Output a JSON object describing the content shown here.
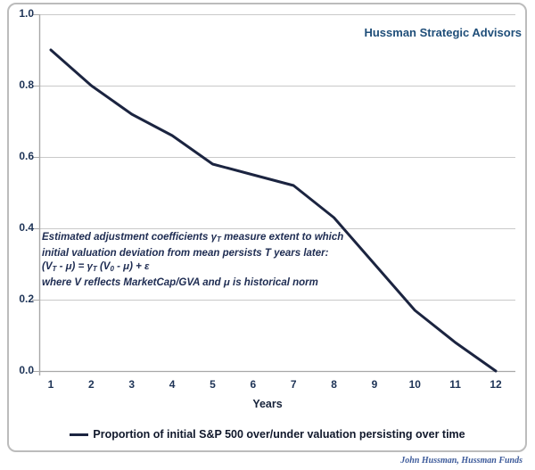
{
  "header": {
    "brand": "Hussman Strategic Advisors"
  },
  "chart_data": {
    "type": "line",
    "x": [
      1,
      2,
      3,
      4,
      5,
      6,
      7,
      8,
      9,
      10,
      11,
      12
    ],
    "series": [
      {
        "name": "Proportion of initial S&P 500 over/under valuation persisting over time",
        "values": [
          0.9,
          0.8,
          0.72,
          0.66,
          0.58,
          0.55,
          0.52,
          0.43,
          0.3,
          0.17,
          0.08,
          0.0
        ]
      }
    ],
    "title": "",
    "xlabel": "Years",
    "ylabel": "",
    "ylim": [
      0.0,
      1.0
    ],
    "yticks": [
      0.0,
      0.2,
      0.4,
      0.6,
      0.8,
      1.0
    ],
    "ytick_labels": [
      "0.0",
      "0.2",
      "0.4",
      "0.6",
      "0.8",
      "1.0"
    ],
    "grid": "horizontal-major",
    "legend_position": "bottom"
  },
  "annotation": {
    "lines": [
      {
        "segs": [
          {
            "t": "Estimated adjustment coefficients γ"
          },
          {
            "t": "T",
            "sub": true
          },
          {
            "t": " measure extent to which"
          }
        ]
      },
      {
        "segs": [
          {
            "t": "initial valuation deviation from mean persists T years later:"
          }
        ]
      },
      {
        "segs": [
          {
            "t": "(V"
          },
          {
            "t": "T",
            "sub": true
          },
          {
            "t": " - μ) = γ"
          },
          {
            "t": "T",
            "sub": true
          },
          {
            "t": " (V"
          },
          {
            "t": "0",
            "sub": true
          },
          {
            "t": " - μ) + ε"
          }
        ]
      },
      {
        "segs": [
          {
            "t": "where V reflects MarketCap/GVA and μ is historical norm"
          }
        ]
      }
    ]
  },
  "legend": {
    "label": "Proportion of initial S&P 500 over/under valuation persisting over time"
  },
  "footer": {
    "credit": "John Hussman, Hussman Funds"
  },
  "colors": {
    "line": "#1b2440",
    "grid": "#c9c9c9",
    "axis": "#a8a8a8",
    "brand_blue": "#1f4e79",
    "tick_text": "#1d3356",
    "border": "#bcbcbc",
    "credit_blue": "#3c5a9a"
  }
}
